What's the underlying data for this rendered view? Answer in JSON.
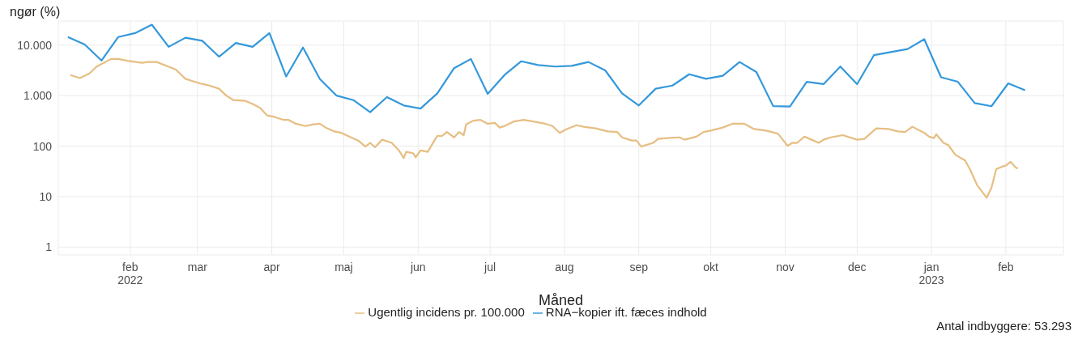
{
  "chart_data": {
    "type": "line",
    "title": "ngør (%)",
    "xlabel": "Måned",
    "annotations": [
      "Antal indbyggere: 53.293"
    ],
    "log": "y",
    "grid": true,
    "legend": "bottom",
    "marker": "none",
    "line_style": "solid",
    "xlim": [
      "2022-01-02",
      "2023-02-25"
    ],
    "xticks": [
      {
        "value": "2022-02-01",
        "label": "feb\n2022"
      },
      {
        "value": "2022-03-01",
        "label": "mar"
      },
      {
        "value": "2022-04-01",
        "label": "apr"
      },
      {
        "value": "2022-05-01",
        "label": "maj"
      },
      {
        "value": "2022-06-01",
        "label": "jun"
      },
      {
        "value": "2022-07-01",
        "label": "jul"
      },
      {
        "value": "2022-08-01",
        "label": "aug"
      },
      {
        "value": "2022-09-01",
        "label": "sep"
      },
      {
        "value": "2022-10-01",
        "label": "okt"
      },
      {
        "value": "2022-11-01",
        "label": "nov"
      },
      {
        "value": "2022-12-01",
        "label": "dec"
      },
      {
        "value": "2023-01-01",
        "label": "jan\n2023"
      },
      {
        "value": "2023-02-01",
        "label": "feb"
      }
    ],
    "ylim": [
      0.7,
      30000
    ],
    "yticks": [
      1,
      10,
      100,
      {
        "value": 1000,
        "label": "1.000"
      },
      {
        "value": 10000,
        "label": "10.000"
      }
    ],
    "series": [
      {
        "name": "Ugentlig incidens pr. 100.000",
        "color": "#e6be82",
        "x": [
          "2022-01-07",
          "2022-01-11",
          "2022-01-15",
          "2022-01-18",
          "2022-01-24",
          "2022-01-27",
          "2022-02-01",
          "2022-02-06",
          "2022-02-08",
          "2022-02-12",
          "2022-02-16",
          "2022-02-20",
          "2022-02-24",
          "2022-02-27",
          "2022-03-02",
          "2022-03-06",
          "2022-03-10",
          "2022-03-13",
          "2022-03-16",
          "2022-03-21",
          "2022-03-24",
          "2022-03-27",
          "2022-03-30",
          "2022-04-02",
          "2022-04-06",
          "2022-04-08",
          "2022-04-11",
          "2022-04-15",
          "2022-04-18",
          "2022-04-21",
          "2022-04-24",
          "2022-04-27",
          "2022-04-30",
          "2022-05-04",
          "2022-05-07",
          "2022-05-10",
          "2022-05-12",
          "2022-05-14",
          "2022-05-17",
          "2022-05-21",
          "2022-05-24",
          "2022-05-26",
          "2022-05-27",
          "2022-05-30",
          "2022-05-31",
          "2022-06-02",
          "2022-06-05",
          "2022-06-08",
          "2022-06-09",
          "2022-06-11",
          "2022-06-13",
          "2022-06-16",
          "2022-06-18",
          "2022-06-20",
          "2022-06-21",
          "2022-06-24",
          "2022-06-27",
          "2022-06-30",
          "2022-07-03",
          "2022-07-05",
          "2022-07-07",
          "2022-07-11",
          "2022-07-15",
          "2022-07-19",
          "2022-07-24",
          "2022-07-27",
          "2022-07-30",
          "2022-08-02",
          "2022-08-06",
          "2022-08-09",
          "2022-08-14",
          "2022-08-19",
          "2022-08-23",
          "2022-08-25",
          "2022-08-29",
          "2022-08-31",
          "2022-09-02",
          "2022-09-07",
          "2022-09-09",
          "2022-09-13",
          "2022-09-18",
          "2022-09-20",
          "2022-09-25",
          "2022-09-28",
          "2022-10-01",
          "2022-10-06",
          "2022-10-10",
          "2022-10-15",
          "2022-10-19",
          "2022-10-24",
          "2022-10-29",
          "2022-10-31",
          "2022-11-02",
          "2022-11-04",
          "2022-11-06",
          "2022-11-09",
          "2022-11-12",
          "2022-11-15",
          "2022-11-17",
          "2022-11-20",
          "2022-11-25",
          "2022-12-01",
          "2022-12-04",
          "2022-12-09",
          "2022-12-14",
          "2022-12-18",
          "2022-12-21",
          "2022-12-24",
          "2022-12-29",
          "2022-12-31",
          "2023-01-02",
          "2023-01-03",
          "2023-01-06",
          "2023-01-08",
          "2023-01-11",
          "2023-01-15",
          "2023-01-17",
          "2023-01-20",
          "2023-01-24",
          "2023-01-26",
          "2023-01-28",
          "2023-01-31",
          "2023-02-01",
          "2023-02-03",
          "2023-02-05",
          "2023-02-06"
        ],
        "values": [
          2560,
          2230,
          2750,
          3760,
          5320,
          5320,
          4790,
          4470,
          4630,
          4630,
          3890,
          3270,
          2150,
          1940,
          1750,
          1580,
          1370,
          1000,
          815,
          787,
          685,
          576,
          406,
          379,
          330,
          330,
          277,
          250,
          268,
          277,
          225,
          196,
          183,
          149,
          129,
          98,
          116,
          95,
          134,
          116,
          82,
          58,
          77,
          72,
          60,
          82,
          77,
          134,
          159,
          159,
          190,
          149,
          190,
          165,
          268,
          319,
          330,
          277,
          288,
          233,
          250,
          308,
          330,
          308,
          277,
          250,
          183,
          218,
          259,
          242,
          225,
          196,
          190,
          149,
          129,
          129,
          98,
          116,
          139,
          144,
          149,
          134,
          154,
          190,
          203,
          233,
          277,
          277,
          218,
          203,
          177,
          134,
          101,
          116,
          116,
          154,
          134,
          116,
          134,
          149,
          165,
          134,
          139,
          225,
          218,
          196,
          190,
          242,
          183,
          154,
          144,
          171,
          116,
          105,
          67,
          52,
          35,
          17,
          9.5,
          15,
          35,
          40,
          41,
          49,
          38,
          36
        ]
      },
      {
        "name": "RNA−kopier ift. fæces indhold",
        "color": "#3498db",
        "x": [
          "2022-01-06",
          "2022-01-13",
          "2022-01-20",
          "2022-01-27",
          "2022-02-03",
          "2022-02-10",
          "2022-02-17",
          "2022-02-24",
          "2022-03-03",
          "2022-03-10",
          "2022-03-17",
          "2022-03-24",
          "2022-03-31",
          "2022-04-07",
          "2022-04-14",
          "2022-04-21",
          "2022-04-28",
          "2022-05-05",
          "2022-05-12",
          "2022-05-19",
          "2022-05-26",
          "2022-06-02",
          "2022-06-09",
          "2022-06-16",
          "2022-06-23",
          "2022-06-30",
          "2022-07-07",
          "2022-07-14",
          "2022-07-21",
          "2022-07-28",
          "2022-08-04",
          "2022-08-11",
          "2022-08-18",
          "2022-08-25",
          "2022-09-01",
          "2022-09-08",
          "2022-09-15",
          "2022-09-22",
          "2022-09-29",
          "2022-10-06",
          "2022-10-13",
          "2022-10-20",
          "2022-10-27",
          "2022-11-03",
          "2022-11-10",
          "2022-11-17",
          "2022-11-24",
          "2022-12-01",
          "2022-12-08",
          "2022-12-22",
          "2022-12-29",
          "2023-01-05",
          "2023-01-12",
          "2023-01-19",
          "2023-01-26",
          "2023-02-02",
          "2023-02-09"
        ],
        "values": [
          14500,
          10300,
          4960,
          14500,
          17300,
          25400,
          9260,
          14000,
          12200,
          5900,
          11000,
          9260,
          17300,
          2390,
          8950,
          2150,
          1000,
          815,
          470,
          936,
          639,
          556,
          1110,
          3500,
          5320,
          1080,
          2560,
          4790,
          4030,
          3760,
          3890,
          4630,
          3160,
          1110,
          639,
          1370,
          1580,
          2650,
          2150,
          2470,
          4630,
          2940,
          620,
          610,
          1880,
          1690,
          3760,
          1690,
          6320,
          8350,
          13100,
          2310,
          1880,
          710,
          617,
          1750,
          1280
        ]
      }
    ]
  }
}
